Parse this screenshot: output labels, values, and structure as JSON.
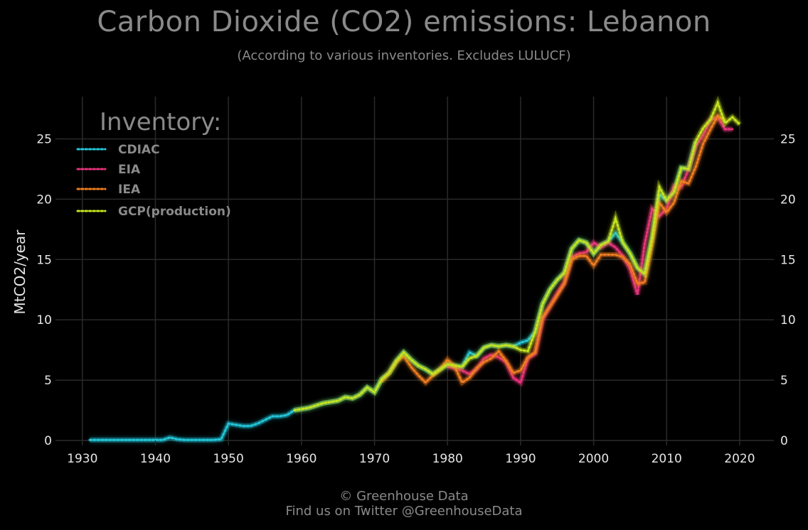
{
  "title": "Carbon Dioxide (CO2) emissions: Lebanon",
  "subtitle": "(According to various inventories. Excludes LULUCF)",
  "footer": {
    "line1": "© Greenhouse Data",
    "line2": "Find us on Twitter @GreenhouseData"
  },
  "colors": {
    "background": "#000000",
    "grid": "#2a2a2a",
    "text_muted": "#8a8a8a",
    "tick_text": "#e6e6e6"
  },
  "chart_data": {
    "type": "line",
    "title": "Carbon Dioxide (CO2) emissions: Lebanon",
    "subtitle": "(According to various inventories. Excludes LULUCF)",
    "xlabel": "",
    "ylabel": "MtCO2/year",
    "xlim": [
      1927,
      2024
    ],
    "ylim": [
      0,
      28.5
    ],
    "x_ticks": [
      1930,
      1940,
      1950,
      1960,
      1970,
      1980,
      1990,
      2000,
      2010,
      2020
    ],
    "y_ticks": [
      0,
      5,
      10,
      15,
      20,
      25
    ],
    "grid": true,
    "legend_title": "Inventory:",
    "legend_position": "top-left",
    "line_style": "dotted",
    "series": [
      {
        "name": "CDIAC",
        "color": "#22c7d9",
        "x": [
          1931,
          1932,
          1933,
          1934,
          1935,
          1936,
          1937,
          1938,
          1939,
          1940,
          1941,
          1942,
          1943,
          1944,
          1945,
          1946,
          1947,
          1948,
          1949,
          1950,
          1951,
          1952,
          1953,
          1954,
          1955,
          1956,
          1957,
          1958,
          1959,
          1960,
          1961,
          1962,
          1963,
          1964,
          1965,
          1966,
          1967,
          1968,
          1969,
          1970,
          1971,
          1972,
          1973,
          1974,
          1975,
          1976,
          1977,
          1978,
          1979,
          1980,
          1981,
          1982,
          1983,
          1984,
          1985,
          1986,
          1987,
          1988,
          1989,
          1990,
          1991,
          1992,
          1993,
          1994,
          1995,
          1996,
          1997,
          1998,
          1999,
          2000,
          2001,
          2002,
          2003,
          2004,
          2005,
          2006,
          2007,
          2008,
          2009,
          2010,
          2011,
          2012,
          2013,
          2014
        ],
        "y": [
          0.05,
          0.05,
          0.05,
          0.05,
          0.05,
          0.05,
          0.05,
          0.05,
          0.05,
          0.05,
          0.05,
          0.25,
          0.1,
          0.05,
          0.05,
          0.05,
          0.05,
          0.05,
          0.1,
          1.4,
          1.3,
          1.2,
          1.2,
          1.4,
          1.7,
          2.0,
          2.0,
          2.1,
          2.5,
          2.6,
          2.7,
          2.9,
          3.1,
          3.2,
          3.3,
          3.6,
          3.5,
          3.8,
          4.4,
          4.0,
          5.1,
          5.6,
          6.6,
          7.3,
          6.7,
          6.2,
          5.9,
          5.5,
          5.9,
          6.3,
          6.2,
          6.1,
          7.3,
          7.0,
          7.7,
          7.9,
          7.8,
          7.9,
          7.8,
          8.1,
          8.3,
          9.0,
          11.3,
          12.5,
          13.3,
          13.9,
          15.9,
          16.6,
          16.4,
          15.5,
          16.2,
          16.5,
          17.2,
          16.4,
          15.5,
          14.3,
          13.8,
          16.8,
          20.4,
          19.9,
          20.6,
          22.6,
          22.5,
          24.8
        ]
      },
      {
        "name": "EIA",
        "color": "#e8337c",
        "x": [
          1980,
          1981,
          1982,
          1983,
          1984,
          1985,
          1986,
          1987,
          1988,
          1989,
          1990,
          1991,
          1992,
          1993,
          1994,
          1995,
          1996,
          1997,
          1998,
          1999,
          2000,
          2001,
          2002,
          2003,
          2004,
          2005,
          2006,
          2007,
          2008,
          2009,
          2010,
          2011,
          2012,
          2013,
          2014,
          2015,
          2016,
          2017,
          2018,
          2019
        ],
        "y": [
          6.1,
          6.0,
          5.8,
          5.5,
          5.9,
          6.8,
          7.1,
          6.9,
          6.5,
          5.2,
          4.8,
          6.8,
          7.2,
          10.0,
          11.1,
          12.2,
          13.1,
          15.2,
          15.5,
          15.6,
          16.4,
          16.0,
          16.4,
          16.0,
          15.3,
          14.2,
          12.1,
          16.3,
          19.2,
          18.6,
          19.2,
          21.1,
          21.0,
          22.5,
          24.4,
          25.3,
          26.6,
          26.8,
          25.8,
          25.8
        ]
      },
      {
        "name": "IEA",
        "color": "#f07c1f",
        "x": [
          1971,
          1972,
          1973,
          1974,
          1975,
          1976,
          1977,
          1978,
          1979,
          1980,
          1981,
          1982,
          1983,
          1984,
          1985,
          1986,
          1987,
          1988,
          1989,
          1990,
          1991,
          1992,
          1993,
          1994,
          1995,
          1996,
          1997,
          1998,
          1999,
          2000,
          2001,
          2002,
          2003,
          2004,
          2005,
          2006,
          2007,
          2008,
          2009,
          2010,
          2011,
          2012,
          2013,
          2014,
          2015,
          2016,
          2017,
          2018
        ],
        "y": [
          4.9,
          5.6,
          6.5,
          7.0,
          6.1,
          5.4,
          4.8,
          5.4,
          5.9,
          6.7,
          6.1,
          4.8,
          5.2,
          6.0,
          6.5,
          6.8,
          7.4,
          6.6,
          5.6,
          5.8,
          6.9,
          7.3,
          10.2,
          11.1,
          12.0,
          13.0,
          15.0,
          15.3,
          15.3,
          14.5,
          15.4,
          15.4,
          15.4,
          15.2,
          14.6,
          13.0,
          13.1,
          16.2,
          19.7,
          18.9,
          19.7,
          21.5,
          21.3,
          22.7,
          24.6,
          25.8,
          26.9,
          26.5
        ]
      },
      {
        "name": "GCP(production)",
        "color": "#c6e41f",
        "x": [
          1959,
          1960,
          1961,
          1962,
          1963,
          1964,
          1965,
          1966,
          1967,
          1968,
          1969,
          1970,
          1971,
          1972,
          1973,
          1974,
          1975,
          1976,
          1977,
          1978,
          1979,
          1980,
          1981,
          1982,
          1983,
          1984,
          1985,
          1986,
          1987,
          1988,
          1989,
          1990,
          1991,
          1992,
          1993,
          1994,
          1995,
          1996,
          1997,
          1998,
          1999,
          2000,
          2001,
          2002,
          2003,
          2004,
          2005,
          2006,
          2007,
          2008,
          2009,
          2010,
          2011,
          2012,
          2013,
          2014,
          2015,
          2016,
          2017,
          2018,
          2019,
          2020
        ],
        "y": [
          2.5,
          2.6,
          2.7,
          2.9,
          3.1,
          3.2,
          3.3,
          3.6,
          3.5,
          3.8,
          4.4,
          4.0,
          5.1,
          5.6,
          6.6,
          7.3,
          6.7,
          6.2,
          5.9,
          5.5,
          5.9,
          6.3,
          6.2,
          6.1,
          6.8,
          7.0,
          7.7,
          7.9,
          7.8,
          7.9,
          7.8,
          7.5,
          7.4,
          9.0,
          11.3,
          12.5,
          13.3,
          13.9,
          15.9,
          16.6,
          16.4,
          15.5,
          16.2,
          16.5,
          18.4,
          16.4,
          15.5,
          14.3,
          13.8,
          16.8,
          21.0,
          19.9,
          20.6,
          22.6,
          22.5,
          24.8,
          25.9,
          26.6,
          28.0,
          26.3,
          26.8,
          26.2
        ]
      }
    ]
  }
}
